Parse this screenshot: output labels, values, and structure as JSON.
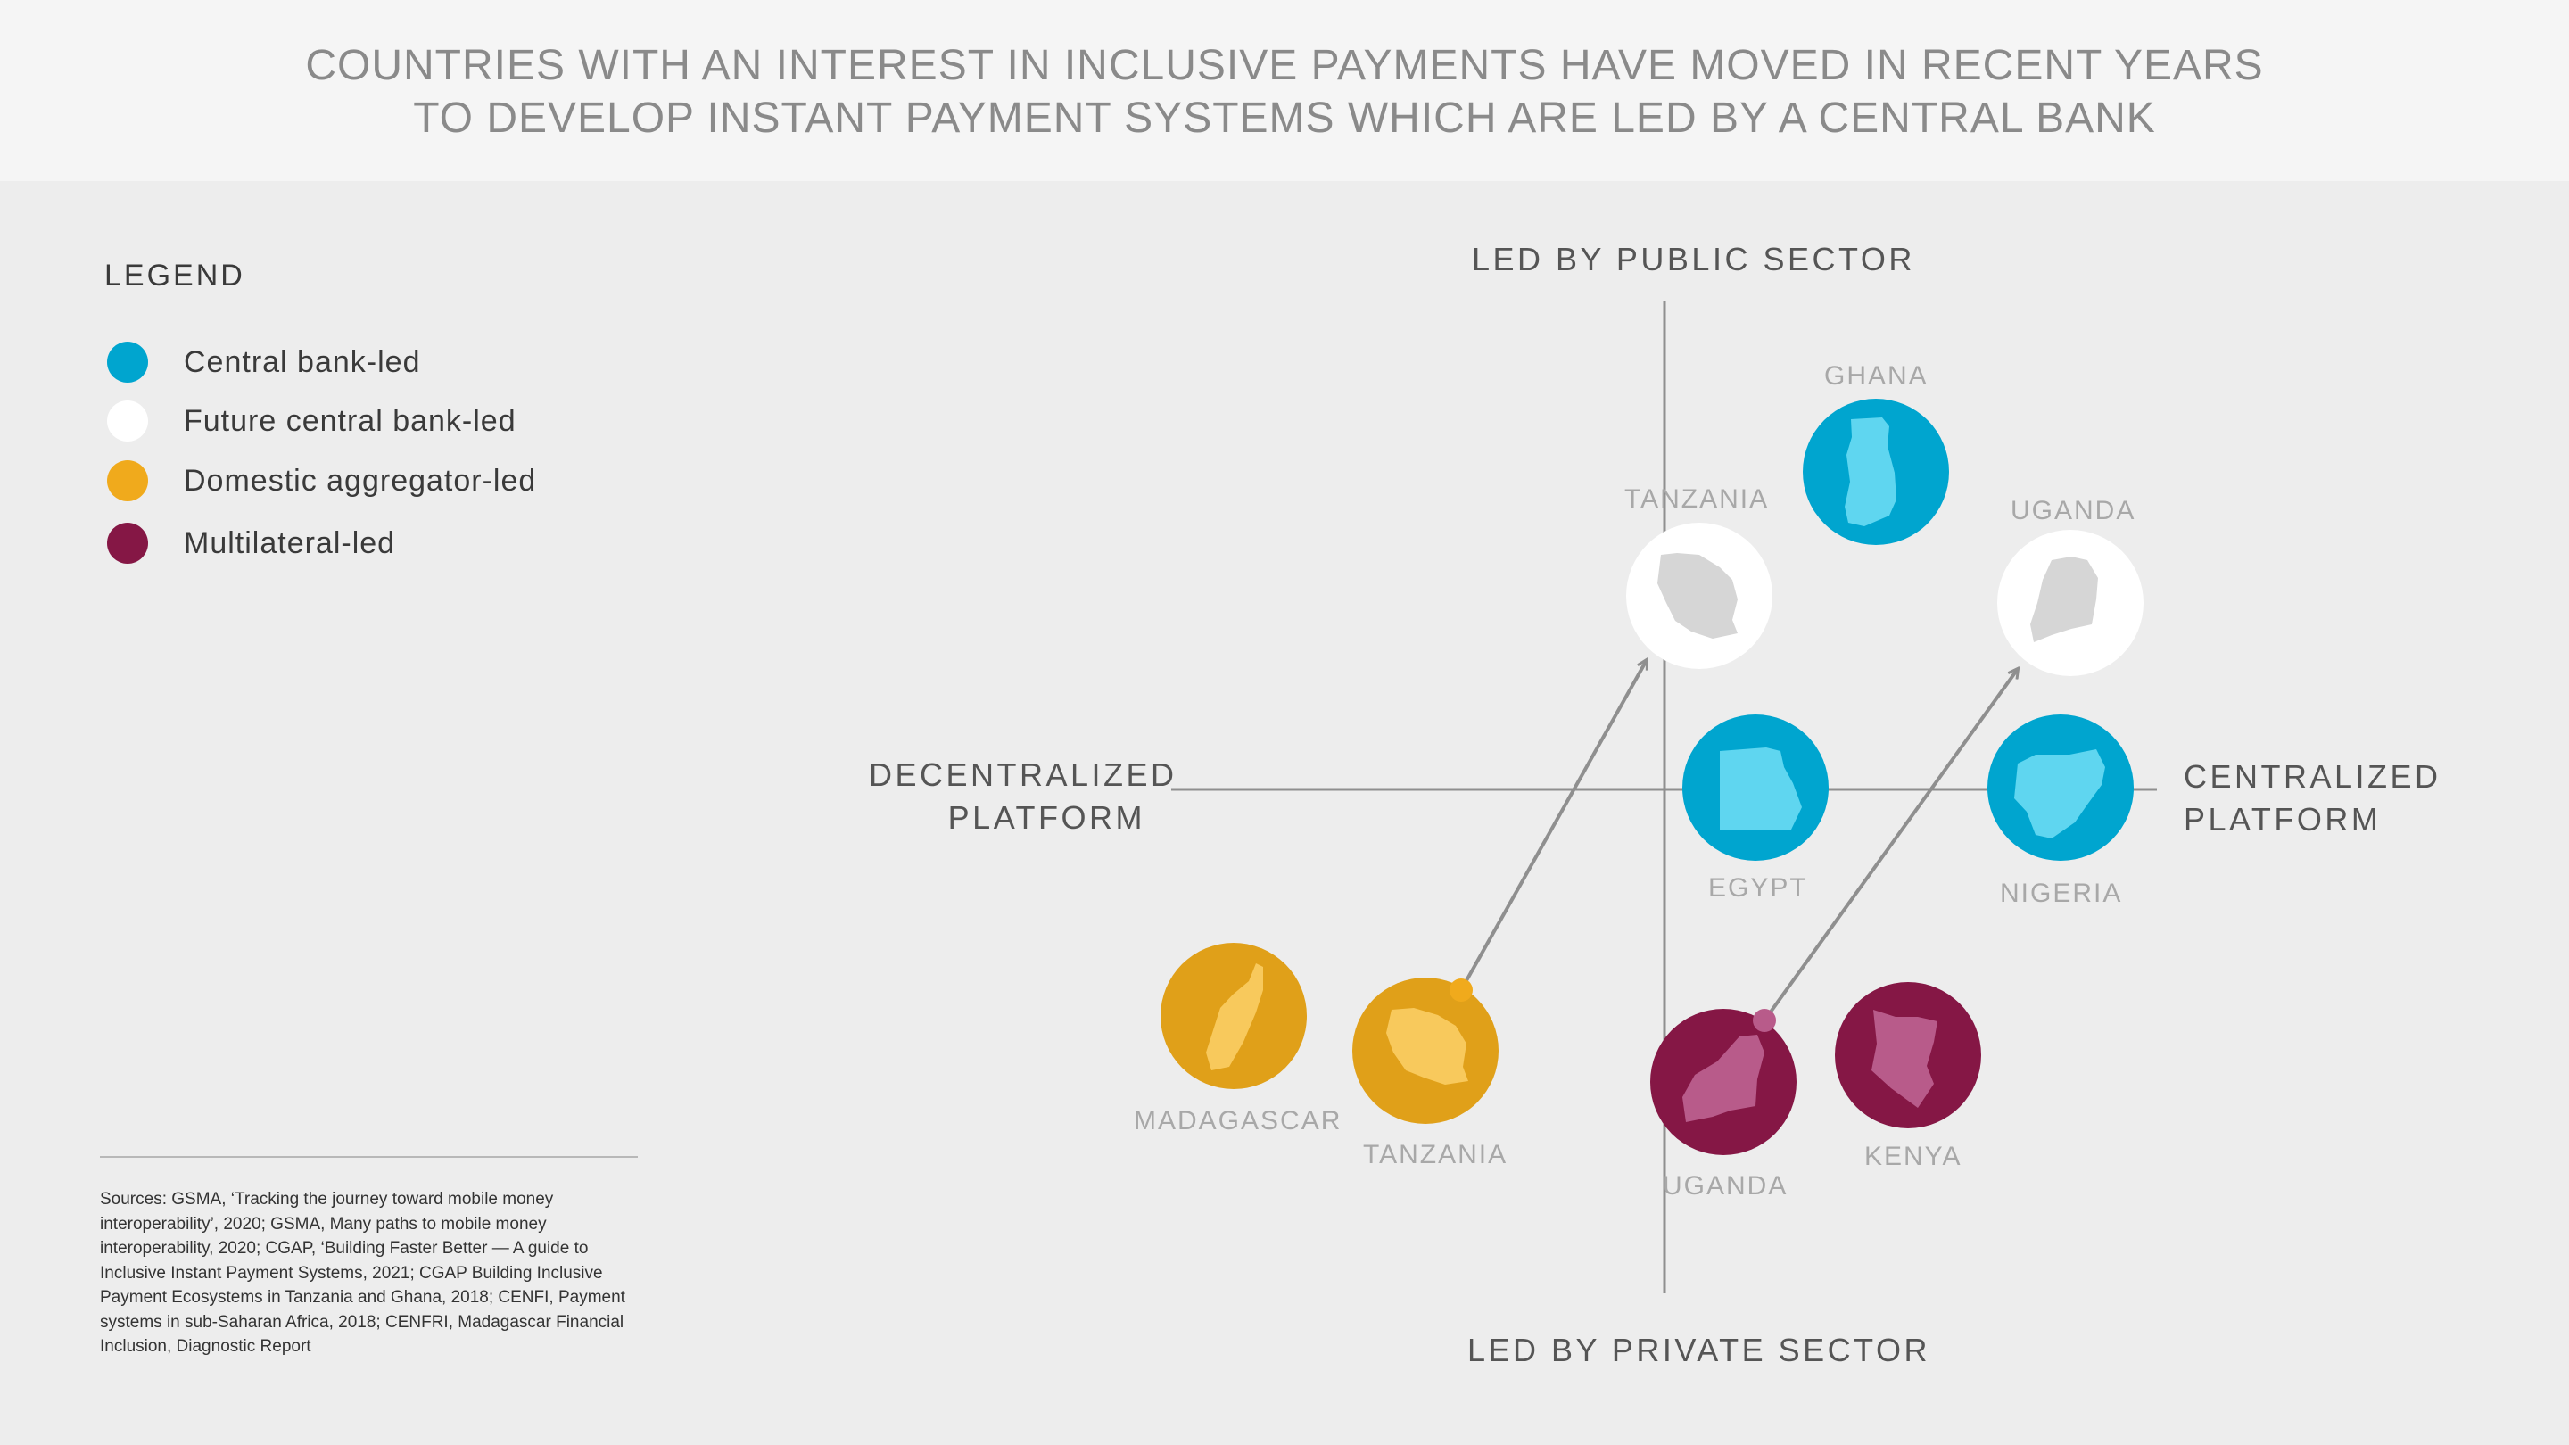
{
  "title": {
    "line1": "COUNTRIES WITH AN INTEREST IN INCLUSIVE PAYMENTS HAVE MOVED IN RECENT YEARS",
    "line2": "TO DEVELOP INSTANT PAYMENT SYSTEMS WHICH ARE LED BY A CENTRAL BANK"
  },
  "legend": {
    "title": "LEGEND",
    "items": [
      {
        "label": "Central bank-led",
        "color": "#00a5cf"
      },
      {
        "label": "Future central bank-led",
        "color": "#ffffff"
      },
      {
        "label": "Domestic aggregator-led",
        "color": "#f0aa1c"
      },
      {
        "label": "Multilateral-led",
        "color": "#851745"
      }
    ]
  },
  "sources": "Sources: GSMA, ‘Tracking the journey toward mobile money interoperability’, 2020; GSMA, Many paths to mobile money interoperability, 2020; CGAP, ‘Building Faster Better — A guide to Inclusive Instant Payment Systems, 2021; CGAP Building Inclusive Payment Ecosystems in Tanzania and Ghana, 2018; CENFI, Payment systems in sub-Saharan Africa, 2018; CENFRI, Madagascar Financial Inclusion, Diagnostic Report",
  "axes": {
    "top": "LED BY PUBLIC SECTOR",
    "bottom": "LED BY PRIVATE SECTOR",
    "left_line1": "DECENTRALIZED",
    "left_line2": "PLATFORM",
    "right_line1": "CENTRALIZED",
    "right_line2": "PLATFORM"
  },
  "countries": {
    "ghana": {
      "label": "GHANA",
      "type": "Central bank-led"
    },
    "tanzania_future": {
      "label": "TANZANIA",
      "type": "Future central bank-led"
    },
    "uganda_future": {
      "label": "UGANDA",
      "type": "Future central bank-led"
    },
    "egypt": {
      "label": "EGYPT",
      "type": "Central bank-led"
    },
    "nigeria": {
      "label": "NIGERIA",
      "type": "Central bank-led"
    },
    "madagascar": {
      "label": "MADAGASCAR",
      "type": "Domestic aggregator-led"
    },
    "tanzania": {
      "label": "TANZANIA",
      "type": "Domestic aggregator-led"
    },
    "uganda": {
      "label": "UGANDA",
      "type": "Multilateral-led"
    },
    "kenya": {
      "label": "KENYA",
      "type": "Multilateral-led"
    }
  },
  "colors": {
    "central_bank": "#00a5cf",
    "central_bank_map": "#5fd6f0",
    "future": "#ffffff",
    "future_map": "#d6d6d6",
    "aggregator": "#e0a019",
    "aggregator_map": "#f8c95c",
    "multilateral": "#851745",
    "multilateral_map": "#b85b8a",
    "axis": "#8f8f8f"
  }
}
